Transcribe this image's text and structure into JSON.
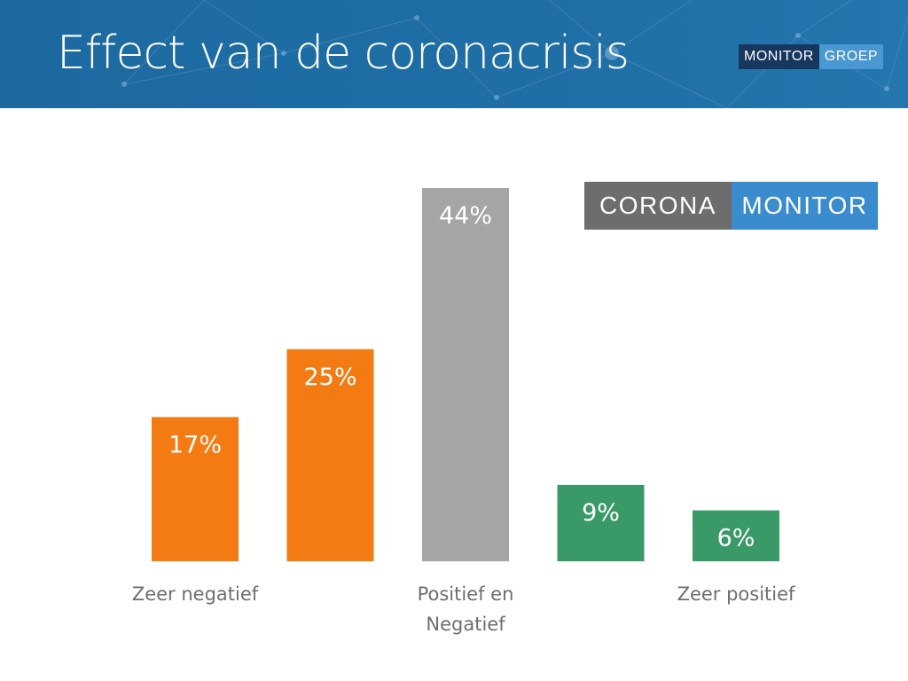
{
  "header": {
    "title": "Effect van de coronacrisis",
    "brand_left": "MONITOR",
    "brand_right": "GROEP"
  },
  "badge": {
    "left": "CORONA",
    "right": "MONITOR"
  },
  "colors": {
    "header_bg": "#1f6ea6",
    "negative": "#f47a14",
    "neutral": "#a5a5a5",
    "positive": "#3a9a67",
    "brand_dark": "#17375e",
    "brand_light": "#4a97d1",
    "badge_gray": "#6d6d6d",
    "badge_blue": "#3a8ccf"
  },
  "chart_data": {
    "type": "bar",
    "title": "Effect van de coronacrisis",
    "xlabel": "",
    "ylabel": "",
    "ylim": [
      0,
      44
    ],
    "grid": false,
    "categories": [
      "Zeer negatief",
      "",
      "Positief en Negatief",
      "",
      "Zeer positief"
    ],
    "category_labels": [
      [
        "Zeer negatief"
      ],
      [],
      [
        "Positief en",
        "Negatief"
      ],
      [],
      [
        "Zeer positief"
      ]
    ],
    "values": [
      17,
      25,
      44,
      9,
      6
    ],
    "value_labels": [
      "17%",
      "25%",
      "44%",
      "9%",
      "6%"
    ],
    "bar_colors": [
      "#f47a14",
      "#f47a14",
      "#a5a5a5",
      "#3a9a67",
      "#3a9a67"
    ]
  }
}
